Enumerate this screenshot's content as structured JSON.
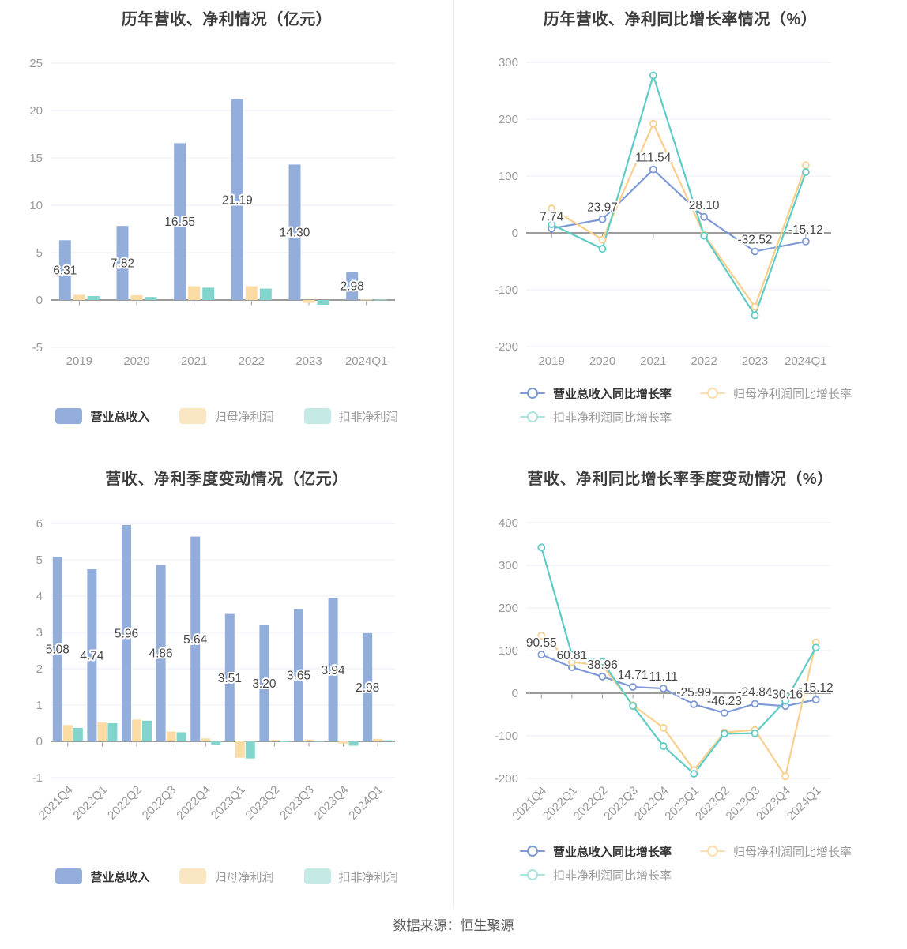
{
  "page": {
    "footer": "数据来源：恒生聚源"
  },
  "colors": {
    "bar_blue": "#94AEDC",
    "bar_orange": "#FBDCA4",
    "bar_teal": "#82D5CD",
    "line_blue": "#7D99D6",
    "line_orange": "#F9CF8E",
    "line_teal": "#5FCCC5",
    "legend_faded_orange_bar": "#FBE6C3",
    "legend_faded_teal_bar": "#C5EAE6",
    "legend_faded_orange_line": "#FBDFB1",
    "legend_faded_teal_line": "#A9E4DF",
    "grid": "#E8EDF6",
    "axis_line": "#7C7C7C",
    "tick_text": "#999999",
    "data_label": "#474747",
    "title_text": "#3D3D3D",
    "legend_text_active": "#333333",
    "legend_text_muted": "#9B9B9B",
    "divider": "#E9E9E9",
    "footer_text": "#595959"
  },
  "chart_data": [
    {
      "type": "bar",
      "title": "历年营收、净利情况（亿元）",
      "categories": [
        "2019",
        "2020",
        "2021",
        "2022",
        "2023",
        "2024Q1"
      ],
      "yticks": [
        25,
        20,
        15,
        10,
        5,
        0,
        -5
      ],
      "ylim": [
        -5,
        25
      ],
      "x_labels_rotated": false,
      "legend_position": "bottom",
      "series": [
        {
          "name": "营业总收入",
          "labeled": true,
          "values": [
            6.31,
            7.82,
            16.55,
            21.19,
            14.3,
            2.98
          ]
        },
        {
          "name": "归母净利润",
          "labeled": false,
          "values": [
            0.55,
            0.5,
            1.45,
            1.45,
            -0.3,
            0.05
          ]
        },
        {
          "name": "扣非净利润",
          "labeled": false,
          "values": [
            0.42,
            0.32,
            1.3,
            1.2,
            -0.5,
            0.04
          ]
        }
      ]
    },
    {
      "type": "line",
      "title": "历年营收、净利同比增长率情况（%）",
      "categories": [
        "2019",
        "2020",
        "2021",
        "2022",
        "2023",
        "2024Q1"
      ],
      "yticks": [
        300,
        200,
        100,
        0,
        -100,
        -200
      ],
      "ylim": [
        -200,
        300
      ],
      "x_labels_rotated": false,
      "legend_position": "bottom",
      "series": [
        {
          "name": "营业总收入同比增长率",
          "labeled": true,
          "values": [
            7.74,
            23.97,
            111.54,
            28.1,
            -32.52,
            -15.12
          ]
        },
        {
          "name": "归母净利润同比增长率",
          "labeled": false,
          "values": [
            43,
            -12,
            192,
            -3,
            -130,
            119
          ]
        },
        {
          "name": "扣非净利润同比增长率",
          "labeled": false,
          "values": [
            15,
            -28,
            277,
            -5,
            -145,
            107
          ]
        }
      ]
    },
    {
      "type": "bar",
      "title": "营收、净利季度变动情况（亿元）",
      "categories": [
        "2021Q4",
        "2022Q1",
        "2022Q2",
        "2022Q3",
        "2022Q4",
        "2023Q1",
        "2023Q2",
        "2023Q3",
        "2023Q4",
        "2024Q1"
      ],
      "yticks": [
        6,
        5,
        4,
        3,
        2,
        1,
        0,
        -1
      ],
      "ylim": [
        -1,
        6
      ],
      "x_labels_rotated": true,
      "legend_position": "bottom",
      "series": [
        {
          "name": "营业总收入",
          "labeled": true,
          "values": [
            5.08,
            4.74,
            5.96,
            4.86,
            5.64,
            3.51,
            3.2,
            3.65,
            3.94,
            2.98
          ]
        },
        {
          "name": "归母净利润",
          "labeled": false,
          "values": [
            0.45,
            0.52,
            0.6,
            0.27,
            0.08,
            -0.45,
            0.04,
            0.05,
            -0.06,
            0.07
          ]
        },
        {
          "name": "扣非净利润",
          "labeled": false,
          "values": [
            0.37,
            0.5,
            0.57,
            0.25,
            -0.1,
            -0.47,
            -0.02,
            0.01,
            -0.12,
            0.03
          ]
        }
      ]
    },
    {
      "type": "line",
      "title": "营收、净利同比增长率季度变动情况（%）",
      "categories": [
        "2021Q4",
        "2022Q1",
        "2022Q2",
        "2022Q3",
        "2022Q4",
        "2023Q1",
        "2023Q2",
        "2023Q3",
        "2023Q4",
        "2024Q1"
      ],
      "yticks": [
        400,
        300,
        200,
        100,
        0,
        -100,
        -200
      ],
      "ylim": [
        -200,
        400
      ],
      "x_labels_rotated": true,
      "legend_position": "bottom",
      "series": [
        {
          "name": "营业总收入同比增长率",
          "labeled": true,
          "values": [
            90.55,
            60.81,
            38.96,
            14.71,
            11.11,
            -25.99,
            -46.23,
            -24.84,
            -30.16,
            -15.12
          ]
        },
        {
          "name": "归母净利润同比增长率",
          "labeled": false,
          "values": [
            135,
            73,
            65,
            -28,
            -81,
            -180,
            -92,
            -86,
            -195,
            119
          ]
        },
        {
          "name": "扣非净利润同比增长率",
          "labeled": false,
          "values": [
            342,
            90,
            74,
            -30,
            -124,
            -189,
            -95,
            -94,
            -18,
            107
          ]
        }
      ]
    }
  ]
}
